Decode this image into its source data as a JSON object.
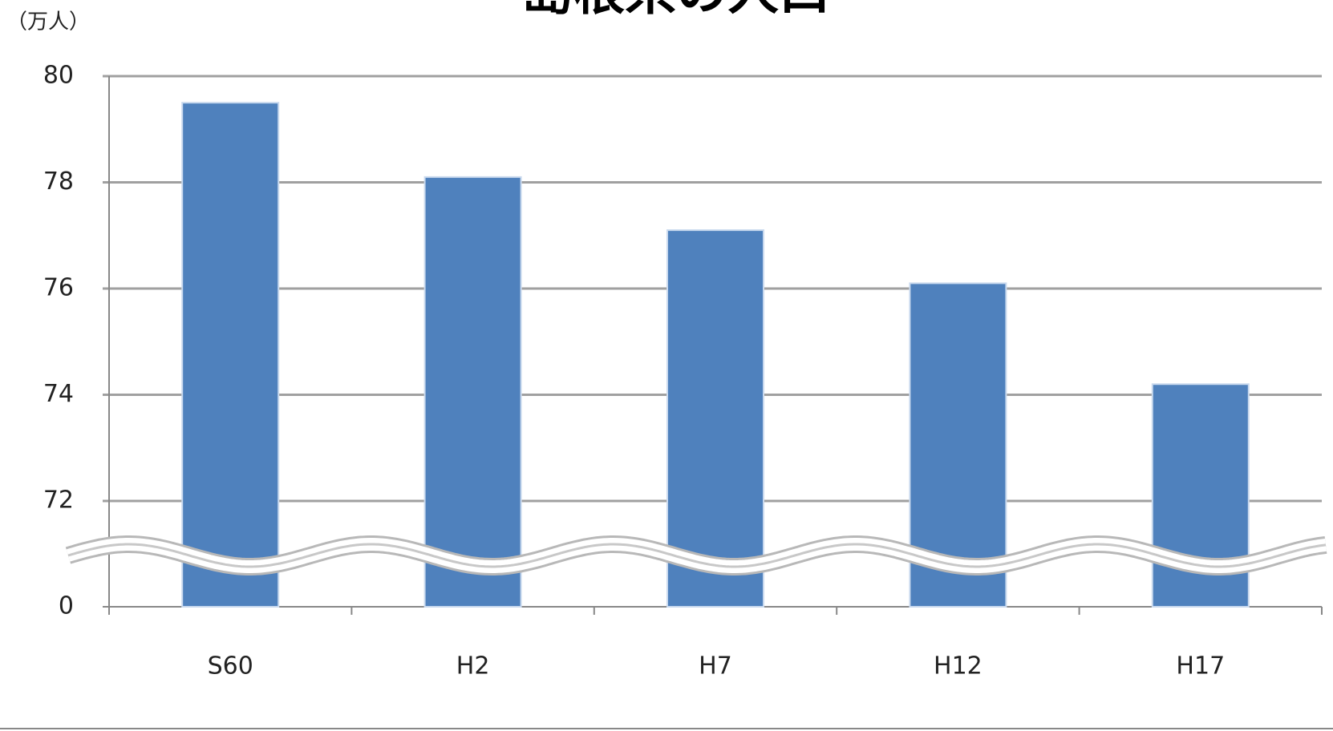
{
  "chart_data": {
    "type": "bar",
    "title": "島根県の人口",
    "y_label": "（万人）",
    "categories": [
      "S60",
      "H2",
      "H7",
      "H12",
      "H17"
    ],
    "values": [
      79.5,
      78.1,
      77.1,
      76.1,
      74.2
    ],
    "color": "#4f81bd",
    "ylim": [
      0,
      80
    ],
    "yticks": [
      0,
      72,
      74,
      76,
      78,
      80
    ],
    "axis_break": true,
    "grid": true
  }
}
